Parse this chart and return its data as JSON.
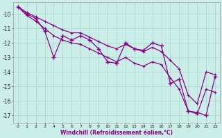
{
  "xlabel": "Windchill (Refroidissement éolien,°C)",
  "background_color": "#cceee8",
  "grid_color": "#aaddcc",
  "line_color": "#880088",
  "x": [
    0,
    1,
    2,
    3,
    4,
    5,
    6,
    7,
    8,
    9,
    10,
    11,
    12,
    13,
    14,
    15,
    16,
    17,
    18,
    19,
    20,
    21,
    22
  ],
  "y_data": [
    -9.5,
    -10.0,
    -10.3,
    -11.2,
    -13.0,
    -11.5,
    -11.8,
    -11.5,
    -11.8,
    -12.4,
    -13.3,
    -13.4,
    -12.0,
    -12.4,
    -12.5,
    -12.0,
    -12.2,
    -14.8,
    -14.5,
    -16.7,
    -16.8,
    -17.0,
    -14.3
  ],
  "y_upper": [
    -9.5,
    -9.9,
    -10.2,
    -10.5,
    -10.8,
    -11.1,
    -11.3,
    -11.3,
    -11.6,
    -11.9,
    -12.2,
    -12.4,
    -12.1,
    -12.4,
    -12.6,
    -12.3,
    -12.6,
    -13.2,
    -13.8,
    -15.6,
    -16.2,
    -14.0,
    -14.2
  ],
  "y_lower": [
    -9.5,
    -10.1,
    -10.5,
    -11.0,
    -11.5,
    -11.8,
    -12.0,
    -12.1,
    -12.4,
    -12.7,
    -13.0,
    -13.3,
    -13.0,
    -13.4,
    -13.6,
    -13.3,
    -13.5,
    -14.4,
    -15.2,
    -16.7,
    -16.9,
    -15.2,
    -15.4
  ],
  "ylim": [
    -17.5,
    -9.2
  ],
  "xlim": [
    -0.5,
    22.5
  ],
  "yticks": [
    -17,
    -16,
    -15,
    -14,
    -13,
    -12,
    -11,
    -10
  ],
  "xticks": [
    0,
    1,
    2,
    3,
    4,
    5,
    6,
    7,
    8,
    9,
    10,
    11,
    12,
    13,
    14,
    15,
    16,
    17,
    18,
    19,
    20,
    21,
    22
  ],
  "figwidth": 3.2,
  "figheight": 2.0,
  "dpi": 100
}
